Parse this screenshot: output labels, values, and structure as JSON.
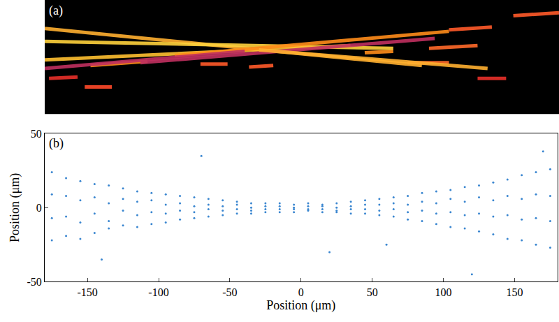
{
  "chart_data": [
    {
      "type": "line",
      "tick_labels": false,
      "annotations": [
        "(a)"
      ],
      "xlim": [
        -180,
        180
      ],
      "ylim": [
        -40,
        40
      ],
      "series": [
        {
          "x": [
            -152,
            -133
          ],
          "y": [
            -21,
            -21
          ],
          "color": "#ff4a2a"
        },
        {
          "x": [
            -177,
            -157
          ],
          "y": [
            -15,
            -14
          ],
          "color": "#e8302a"
        },
        {
          "x": [
            -148,
            -108
          ],
          "y": [
            -6,
            -3
          ],
          "color": "#ff8c1a"
        },
        {
          "x": [
            -71,
            -52
          ],
          "y": [
            -5,
            -5
          ],
          "color": "#ff5a2a"
        },
        {
          "x": [
            -37,
            -20
          ],
          "y": [
            -7,
            -6
          ],
          "color": "#ff5a2a"
        },
        {
          "x": [
            44,
            64
          ],
          "y": [
            3,
            4
          ],
          "color": "#ff8c1a"
        },
        {
          "x": [
            74,
            103
          ],
          "y": [
            -4,
            -4
          ],
          "color": "#ff6a2a"
        },
        {
          "x": [
            89,
            123
          ],
          "y": [
            6,
            8
          ],
          "color": "#ff6a2a"
        },
        {
          "x": [
            123,
            143
          ],
          "y": [
            -15,
            -15
          ],
          "color": "#e8302a"
        },
        {
          "x": [
            103,
            133
          ],
          "y": [
            19,
            21
          ],
          "color": "#ff5a2a"
        },
        {
          "x": [
            148,
            180
          ],
          "y": [
            29,
            31
          ],
          "color": "#ff5a2a"
        },
        {
          "x": [
            -180,
            84
          ],
          "y": [
            20,
            -6
          ],
          "color": "#ffb030"
        },
        {
          "x": [
            -180,
            64
          ],
          "y": [
            11,
            6
          ],
          "color": "#ffd23c"
        },
        {
          "x": [
            -180,
            34
          ],
          "y": [
            -2,
            8
          ],
          "color": "#ffc030"
        },
        {
          "x": [
            -89,
            103
          ],
          "y": [
            1,
            18
          ],
          "color": "#ff8c1a"
        },
        {
          "x": [
            -113,
            93
          ],
          "y": [
            -4,
            13
          ],
          "color": "#c03060"
        },
        {
          "x": [
            -180,
            -40
          ],
          "y": [
            -8,
            4
          ],
          "color": "#c03060"
        },
        {
          "x": [
            -30,
            130
          ],
          "y": [
            5,
            -8
          ],
          "color": "#ffb030"
        }
      ]
    },
    {
      "type": "scatter",
      "annotations": [
        "(b)"
      ],
      "color": "#3a86d0",
      "xlabel": "Position (μm)",
      "ylabel": "Position (μm)",
      "xlim": [
        -180,
        180
      ],
      "ylim": [
        -50,
        50
      ],
      "xticks": [
        -150,
        -100,
        -50,
        0,
        50,
        100,
        150
      ],
      "yticks": [
        -50,
        0,
        50
      ],
      "x": [
        -175,
        -175,
        -175,
        -175,
        -165,
        -165,
        -165,
        -165,
        -155,
        -155,
        -155,
        -155,
        -145,
        -145,
        -145,
        -145,
        -135,
        -135,
        -135,
        -135,
        -125,
        -125,
        -125,
        -125,
        -115,
        -115,
        -115,
        -115,
        -105,
        -105,
        -105,
        -105,
        -95,
        -95,
        -95,
        -95,
        -85,
        -85,
        -85,
        -85,
        -75,
        -75,
        -75,
        -75,
        -65,
        -65,
        -65,
        -65,
        -55,
        -55,
        -55,
        -55,
        -45,
        -45,
        -45,
        -45,
        -35,
        -35,
        -35,
        -35,
        -25,
        -25,
        -25,
        -25,
        -15,
        -15,
        -15,
        -15,
        -5,
        -5,
        -5,
        -5,
        5,
        5,
        5,
        5,
        15,
        15,
        15,
        15,
        25,
        25,
        25,
        25,
        35,
        35,
        35,
        35,
        45,
        45,
        45,
        45,
        55,
        55,
        55,
        55,
        65,
        65,
        65,
        65,
        75,
        75,
        75,
        75,
        85,
        85,
        85,
        85,
        95,
        95,
        95,
        95,
        105,
        105,
        105,
        105,
        115,
        115,
        115,
        115,
        125,
        125,
        125,
        125,
        135,
        135,
        135,
        135,
        145,
        145,
        145,
        145,
        155,
        155,
        155,
        155,
        165,
        165,
        165,
        165,
        175,
        175,
        175,
        175,
        -70,
        120,
        170,
        -140,
        20,
        60
      ],
      "y": [
        24,
        9,
        -7,
        -22,
        20,
        -6,
        8,
        -19,
        18,
        5,
        -10,
        -21,
        16,
        -4,
        7,
        -17,
        15,
        3,
        -9,
        -14,
        13,
        -2,
        6,
        -12,
        11,
        4,
        -5,
        -13,
        10,
        -3,
        5,
        -11,
        9,
        2,
        -4,
        -10,
        8,
        -2,
        3,
        -8,
        7,
        1,
        -3,
        -7,
        6,
        -1,
        2,
        -6,
        5,
        1,
        -2,
        -5,
        4,
        -1,
        2,
        -4,
        3,
        0,
        -2,
        -4,
        3,
        -1,
        1,
        -3,
        3,
        1,
        -1,
        -3,
        2,
        0,
        -1,
        -3,
        3,
        1,
        -1,
        -2,
        2,
        -1,
        1,
        -3,
        3,
        0,
        -2,
        -3,
        4,
        1,
        -1,
        -4,
        5,
        -1,
        2,
        -4,
        6,
        2,
        -2,
        -5,
        7,
        -1,
        3,
        -6,
        8,
        2,
        -3,
        -8,
        10,
        -2,
        4,
        -9,
        11,
        3,
        -4,
        -11,
        12,
        -3,
        6,
        -13,
        14,
        4,
        -5,
        -14,
        15,
        -4,
        7,
        -16,
        17,
        5,
        -6,
        -18,
        19,
        -5,
        8,
        -21,
        22,
        6,
        -8,
        -22,
        24,
        -7,
        9,
        -25,
        26,
        8,
        -9,
        -27,
        35,
        -45,
        38,
        -35,
        -30,
        -25
      ]
    }
  ]
}
